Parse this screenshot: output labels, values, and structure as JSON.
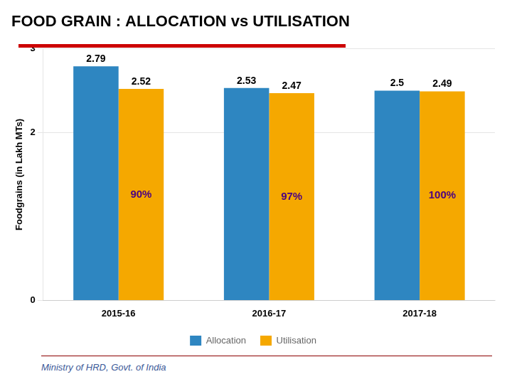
{
  "chart_data": {
    "type": "bar",
    "title": "FOOD GRAIN : ALLOCATION vs UTILISATION",
    "ylabel": "Foodgrains (in Lakh MTs)",
    "categories": [
      "2015-16",
      "2016-17",
      "2017-18"
    ],
    "series": [
      {
        "name": "Allocation",
        "color": "#2E86C1",
        "values": [
          2.79,
          2.53,
          2.5
        ]
      },
      {
        "name": "Utilisation",
        "color": "#F5A800",
        "values": [
          2.52,
          2.47,
          2.49
        ]
      }
    ],
    "ylim": [
      0,
      3
    ],
    "yticks": [
      0,
      2,
      3
    ],
    "grid": true,
    "legend": "bottom",
    "data_labels": true,
    "annotations": [
      {
        "text": "90%",
        "category": "2015-16",
        "series": "Utilisation"
      },
      {
        "text": "97%",
        "category": "2016-17",
        "series": "Utilisation"
      },
      {
        "text": "100%",
        "category": "2017-18",
        "series": "Utilisation"
      },
      {
        "text": "Ministry of HRD, Govt. of India"
      }
    ]
  }
}
